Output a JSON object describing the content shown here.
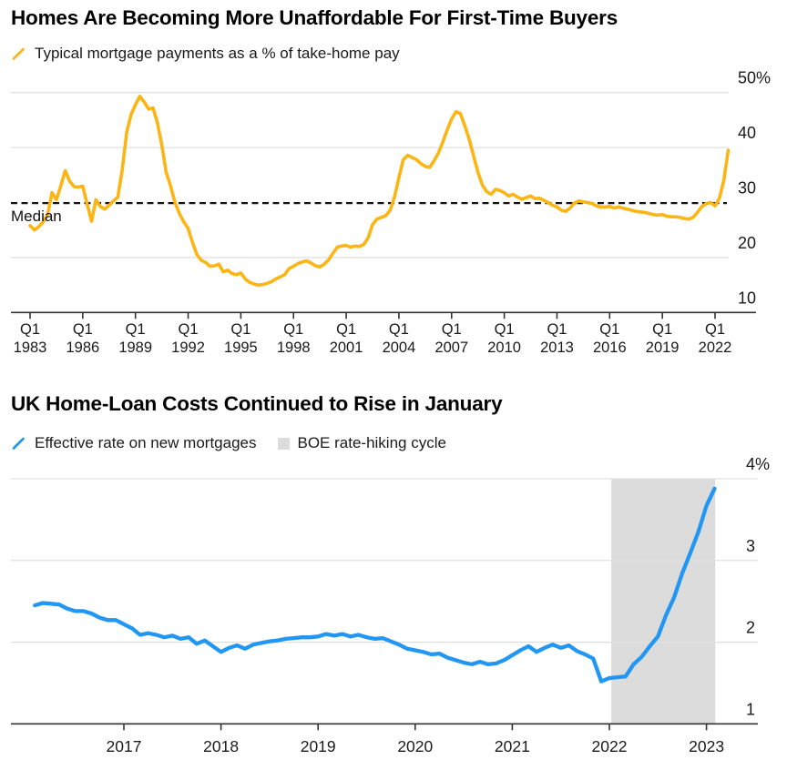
{
  "page": {
    "background": "#FFFFFF"
  },
  "chart_data": [
    {
      "type": "line",
      "title": "Homes Are Becoming More Unaffordable For First-Time Buyers",
      "legend": [
        {
          "marker": "slash",
          "label": "Typical mortgage payments as a % of take-home pay",
          "color": "#FBB515"
        }
      ],
      "series_color": "#FBB515",
      "x_unit": "quarter",
      "x_start": 1983.125,
      "x_step": 0.25,
      "x_tick_prefix": "Q1",
      "x_tick_years": [
        1983,
        1986,
        1989,
        1992,
        1995,
        1998,
        2001,
        2004,
        2007,
        2010,
        2013,
        2016,
        2019,
        2022
      ],
      "y_ticks": [
        {
          "v": 50,
          "label": "50%"
        },
        {
          "v": 40,
          "label": "40"
        },
        {
          "v": 30,
          "label": "30"
        },
        {
          "v": 20,
          "label": "20"
        },
        {
          "v": 10,
          "label": "10"
        }
      ],
      "ylim": [
        10,
        50
      ],
      "grid": "horizontal",
      "median": {
        "label": "Median",
        "value": 29.9
      },
      "values": [
        25.8,
        25.0,
        25.6,
        26.5,
        27.8,
        31.8,
        30.5,
        33.0,
        35.8,
        33.9,
        32.9,
        32.8,
        33.0,
        29.7,
        26.6,
        30.5,
        29.3,
        28.8,
        29.5,
        30.3,
        31.0,
        36.0,
        42.8,
        46.0,
        47.8,
        49.3,
        48.3,
        47.0,
        47.2,
        44.5,
        40.5,
        35.5,
        33.0,
        30.0,
        28.0,
        26.5,
        25.3,
        22.7,
        20.5,
        19.5,
        19.1,
        18.4,
        18.5,
        18.8,
        17.4,
        17.7,
        17.1,
        16.9,
        17.2,
        16.1,
        15.5,
        15.2,
        15.0,
        15.1,
        15.3,
        15.6,
        16.1,
        16.5,
        16.9,
        18.0,
        18.4,
        18.9,
        19.2,
        19.4,
        19.0,
        18.5,
        18.3,
        18.8,
        19.6,
        20.8,
        21.9,
        22.1,
        22.2,
        21.9,
        22.1,
        22.0,
        22.4,
        23.6,
        26.0,
        27.0,
        27.3,
        27.6,
        28.6,
        31.0,
        34.5,
        37.8,
        38.6,
        38.2,
        37.8,
        37.1,
        36.6,
        36.4,
        37.6,
        39.0,
        41.0,
        43.2,
        45.2,
        46.5,
        46.2,
        44.0,
        41.5,
        38.5,
        35.5,
        33.2,
        32.0,
        31.5,
        32.4,
        32.2,
        31.8,
        31.2,
        31.5,
        31.0,
        30.6,
        30.9,
        31.2,
        30.7,
        30.8,
        30.4,
        30.0,
        29.5,
        29.2,
        28.6,
        28.4,
        29.0,
        29.9,
        30.3,
        30.1,
        30.0,
        29.8,
        29.4,
        29.2,
        29.2,
        29.3,
        29.0,
        29.2,
        29.0,
        28.8,
        28.6,
        28.4,
        28.3,
        28.2,
        28.0,
        27.8,
        27.7,
        27.8,
        27.5,
        27.4,
        27.4,
        27.3,
        27.1,
        27.0,
        27.3,
        28.2,
        29.3,
        29.8,
        30.0,
        29.4,
        30.8,
        34.0,
        39.5
      ]
    },
    {
      "type": "line",
      "title": "UK Home-Loan Costs Continued to Rise in January",
      "legend": [
        {
          "marker": "slash",
          "label": "Effective rate on new mortgages",
          "color": "#2196F3"
        },
        {
          "marker": "square",
          "label": "BOE rate-hiking cycle",
          "color": "#DCDCDC"
        }
      ],
      "series_color": "#2196F3",
      "x_unit": "month",
      "x_start": 2016.0833,
      "x_step": 0.0833333,
      "x_tick_years": [
        2017,
        2018,
        2019,
        2020,
        2021,
        2022,
        2023
      ],
      "y_ticks": [
        {
          "v": 4,
          "label": "4%"
        },
        {
          "v": 3,
          "label": "3"
        },
        {
          "v": 2,
          "label": "2"
        },
        {
          "v": 1,
          "label": "1"
        }
      ],
      "ylim": [
        1,
        4
      ],
      "grid": "horizontal",
      "band": {
        "label": "BOE rate-hiking cycle",
        "start": 2022.02,
        "end": 2023.09,
        "color": "#DCDCDC"
      },
      "values": [
        2.45,
        2.48,
        2.47,
        2.46,
        2.41,
        2.38,
        2.38,
        2.35,
        2.3,
        2.27,
        2.27,
        2.22,
        2.17,
        2.09,
        2.11,
        2.09,
        2.06,
        2.08,
        2.04,
        2.06,
        1.98,
        2.02,
        1.95,
        1.88,
        1.93,
        1.96,
        1.92,
        1.97,
        1.99,
        2.01,
        2.02,
        2.04,
        2.05,
        2.06,
        2.06,
        2.07,
        2.1,
        2.08,
        2.1,
        2.07,
        2.09,
        2.06,
        2.04,
        2.05,
        2.01,
        1.97,
        1.92,
        1.9,
        1.88,
        1.85,
        1.86,
        1.81,
        1.78,
        1.75,
        1.73,
        1.76,
        1.73,
        1.74,
        1.78,
        1.84,
        1.9,
        1.95,
        1.88,
        1.93,
        1.97,
        1.93,
        1.96,
        1.89,
        1.85,
        1.8,
        1.52,
        1.56,
        1.57,
        1.58,
        1.73,
        1.82,
        1.95,
        2.07,
        2.33,
        2.55,
        2.84,
        3.09,
        3.35,
        3.67,
        3.88
      ]
    }
  ]
}
